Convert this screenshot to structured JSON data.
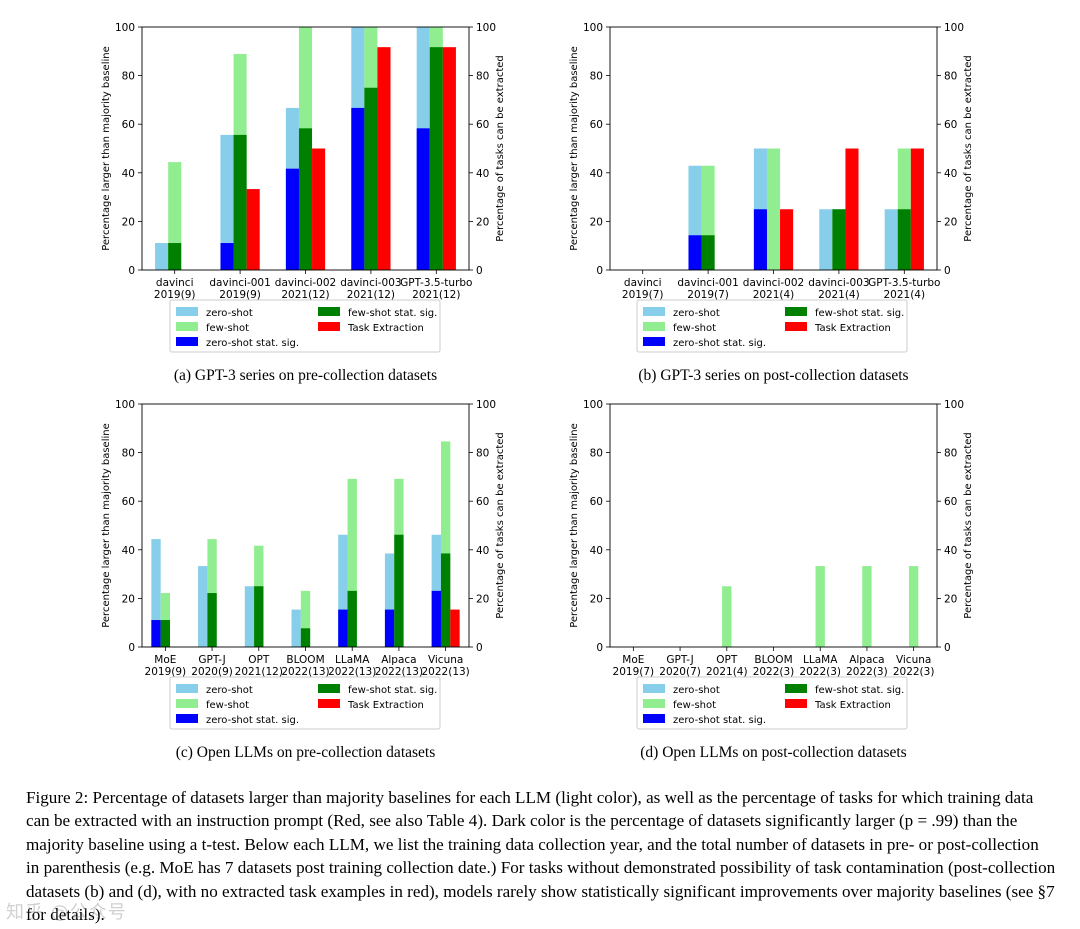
{
  "figure": {
    "colors": {
      "zero_shot": "#87ceeb",
      "few_shot": "#90ee90",
      "zero_sig": "#0000ff",
      "few_sig": "#008000",
      "task_extraction": "#ff0000"
    },
    "legend": {
      "zero_shot": "zero-shot",
      "few_shot": "few-shot",
      "zero_sig": "zero-shot stat. sig.",
      "few_sig": "few-shot stat. sig.",
      "task_extraction": "Task Extraction"
    }
  },
  "chart_data": [
    {
      "type": "bar",
      "subtitle": "(a) GPT-3 series on pre-collection datasets",
      "ylabel": "Percentage larger than majority baseline",
      "ylabel_right": "Percentage of tasks can be extracted",
      "ylim": [
        0,
        100
      ],
      "yticks": [
        "0",
        "20",
        "40",
        "60",
        "80",
        "100"
      ],
      "categories": [
        "davinci",
        "davinci-001",
        "davinci-002",
        "davinci-003",
        "GPT-3.5-turbo"
      ],
      "category_years": [
        "2019(9)",
        "2019(9)",
        "2021(12)",
        "2021(12)",
        "2021(12)"
      ],
      "series": [
        {
          "name": "zero-shot",
          "values": [
            11.1,
            55.6,
            66.7,
            100,
            100
          ]
        },
        {
          "name": "few-shot",
          "values": [
            44.4,
            88.9,
            100,
            100,
            100
          ]
        },
        {
          "name": "zero-shot stat. sig.",
          "values": [
            0,
            11.1,
            41.7,
            66.7,
            58.3
          ]
        },
        {
          "name": "few-shot stat. sig.",
          "values": [
            11.1,
            55.6,
            58.3,
            75,
            91.7
          ]
        },
        {
          "name": "Task Extraction",
          "values": [
            0,
            33.3,
            50,
            91.7,
            91.7
          ]
        }
      ]
    },
    {
      "type": "bar",
      "subtitle": "(b) GPT-3 series on post-collection datasets",
      "ylabel": "Percentage larger than majority baseline",
      "ylabel_right": "Percentage of tasks can be extracted",
      "ylim": [
        0,
        100
      ],
      "yticks": [
        "0",
        "20",
        "40",
        "60",
        "80",
        "100"
      ],
      "categories": [
        "davinci",
        "davinci-001",
        "davinci-002",
        "davinci-003",
        "GPT-3.5-turbo"
      ],
      "category_years": [
        "2019(7)",
        "2019(7)",
        "2021(4)",
        "2021(4)",
        "2021(4)"
      ],
      "series": [
        {
          "name": "zero-shot",
          "values": [
            0,
            42.9,
            50,
            25,
            25
          ]
        },
        {
          "name": "few-shot",
          "values": [
            0,
            42.9,
            50,
            25,
            50
          ]
        },
        {
          "name": "zero-shot stat. sig.",
          "values": [
            0,
            14.3,
            25,
            0,
            0
          ]
        },
        {
          "name": "few-shot stat. sig.",
          "values": [
            0,
            14.3,
            0,
            25,
            25
          ]
        },
        {
          "name": "Task Extraction",
          "values": [
            0,
            0,
            25,
            50,
            50
          ]
        }
      ]
    },
    {
      "type": "bar",
      "subtitle": "(c) Open LLMs on pre-collection datasets",
      "ylabel": "Percentage larger than majority baseline",
      "ylabel_right": "Percentage of tasks can be extracted",
      "ylim": [
        0,
        100
      ],
      "yticks": [
        "0",
        "20",
        "40",
        "60",
        "80",
        "100"
      ],
      "categories": [
        "MoE",
        "GPT-J",
        "OPT",
        "BLOOM",
        "LLaMA",
        "Alpaca",
        "Vicuna"
      ],
      "category_years": [
        "2019(9)",
        "2020(9)",
        "2021(12)",
        "2022(13)",
        "2022(13)",
        "2022(13)",
        "2022(13)"
      ],
      "series": [
        {
          "name": "zero-shot",
          "values": [
            44.4,
            33.3,
            25,
            15.4,
            46.2,
            38.5,
            46.2
          ]
        },
        {
          "name": "few-shot",
          "values": [
            22.2,
            44.4,
            41.7,
            23.1,
            69.2,
            69.2,
            84.6
          ]
        },
        {
          "name": "zero-shot stat. sig.",
          "values": [
            11.1,
            0,
            0,
            0,
            15.4,
            15.4,
            23.1
          ]
        },
        {
          "name": "few-shot stat. sig.",
          "values": [
            11.1,
            22.2,
            25,
            7.7,
            23.1,
            46.2,
            38.5
          ]
        },
        {
          "name": "Task Extraction",
          "values": [
            0,
            0,
            0,
            0,
            0,
            0,
            15.4
          ]
        }
      ]
    },
    {
      "type": "bar",
      "subtitle": "(d) Open LLMs on post-collection datasets",
      "ylabel": "Percentage larger than majority baseline",
      "ylabel_right": "Percentage of tasks can be extracted",
      "ylim": [
        0,
        100
      ],
      "yticks": [
        "0",
        "20",
        "40",
        "60",
        "80",
        "100"
      ],
      "categories": [
        "MoE",
        "GPT-J",
        "OPT",
        "BLOOM",
        "LLaMA",
        "Alpaca",
        "Vicuna"
      ],
      "category_years": [
        "2019(7)",
        "2020(7)",
        "2021(4)",
        "2022(3)",
        "2022(3)",
        "2022(3)",
        "2022(3)"
      ],
      "series": [
        {
          "name": "zero-shot",
          "values": [
            0,
            0,
            0,
            0,
            0,
            0,
            0
          ]
        },
        {
          "name": "few-shot",
          "values": [
            0,
            0,
            25,
            0,
            33.3,
            33.3,
            33.3
          ]
        },
        {
          "name": "zero-shot stat. sig.",
          "values": [
            0,
            0,
            0,
            0,
            0,
            0,
            0
          ]
        },
        {
          "name": "few-shot stat. sig.",
          "values": [
            0,
            0,
            0,
            0,
            0,
            0,
            0
          ]
        },
        {
          "name": "Task Extraction",
          "values": [
            0,
            0,
            0,
            0,
            0,
            0,
            0
          ]
        }
      ]
    }
  ],
  "caption": {
    "text": "Figure 2: Percentage of datasets larger than majority baselines for each LLM (light color), as well as the percentage of tasks for which training data can be extracted with an instruction prompt (Red, see also Table 4). Dark color is the percentage of datasets significantly larger (p = .99) than the majority baseline using a t-test. Below each LLM, we list the training data collection year, and the total number of datasets in pre- or post-collection in parenthesis (e.g. MoE has 7 datasets post training collection date.) For tasks without demonstrated possibility of task contamination (post-collection datasets (b) and (d), with no extracted task examples in red), models rarely show statistically significant improvements over majority baselines (see §7 for details)."
  },
  "watermark": "知乎 @公众号"
}
